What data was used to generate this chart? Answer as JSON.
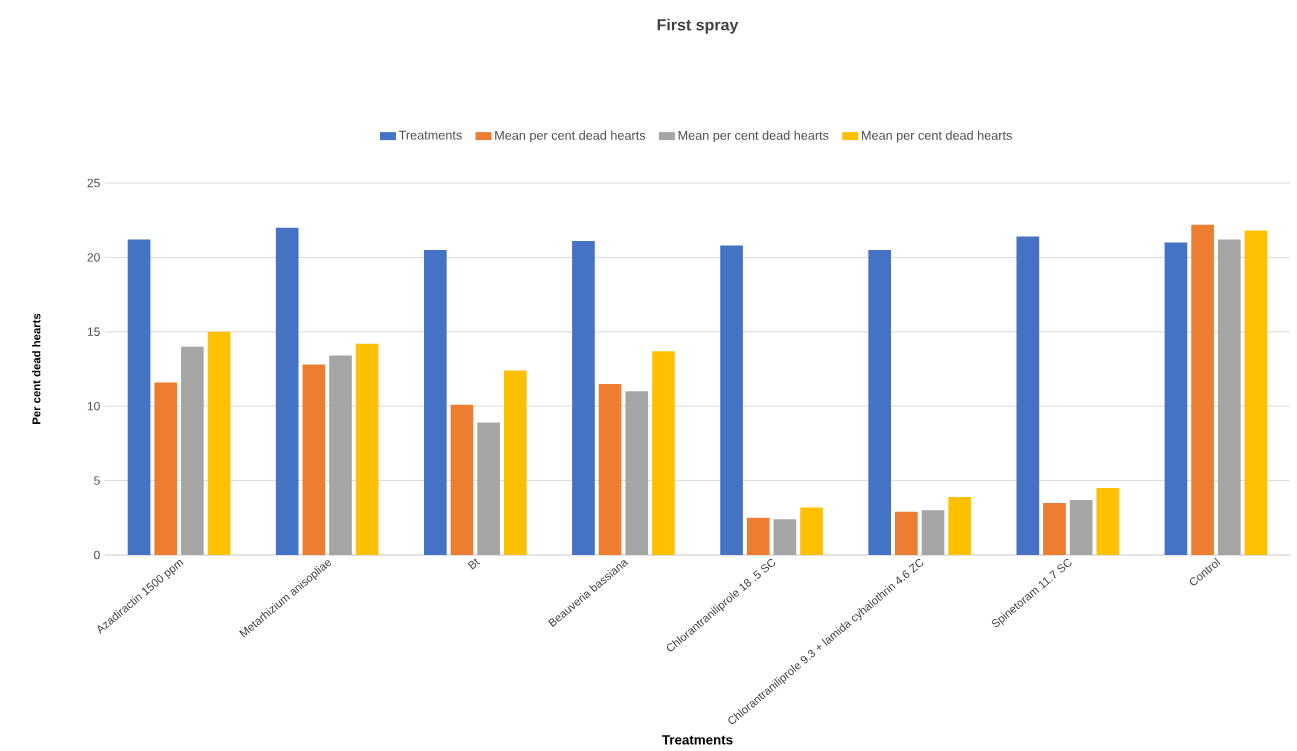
{
  "chart_data": {
    "type": "bar",
    "title": "First  spray",
    "xlabel": "Treatments",
    "ylabel": "Per cent dead hearts",
    "categories": [
      "Azadiractin 1500 ppm",
      "Metarhizium anisopliae",
      "Bt",
      "Beauveria bassiana",
      "Chlorantraniliprole 18 .5 SC",
      "Chlorantraniliprole 9.3 + lamida cyhalothrin 4.6 ZC",
      "Spinetoram 11.7 SC",
      "Control"
    ],
    "series": [
      {
        "name": "Treatments",
        "color": "#4472c4",
        "values": [
          21.2,
          22.0,
          20.5,
          21.1,
          20.8,
          20.5,
          21.4,
          21.0
        ]
      },
      {
        "name": "Mean per cent dead hearts",
        "color": "#ed7d31",
        "values": [
          11.6,
          12.8,
          10.1,
          11.5,
          2.5,
          2.9,
          3.5,
          22.2
        ]
      },
      {
        "name": "Mean per cent dead hearts",
        "color": "#a5a5a5",
        "values": [
          14.0,
          13.4,
          8.9,
          11.0,
          2.4,
          3.0,
          3.7,
          21.2
        ]
      },
      {
        "name": "Mean per cent dead hearts",
        "color": "#ffc000",
        "values": [
          15.0,
          14.2,
          12.4,
          13.7,
          3.2,
          3.9,
          4.5,
          21.8
        ]
      }
    ],
    "ylim": [
      0,
      25
    ],
    "yticks": [
      0,
      5,
      10,
      15,
      20,
      25
    ],
    "grid": "y",
    "legend": "top"
  }
}
